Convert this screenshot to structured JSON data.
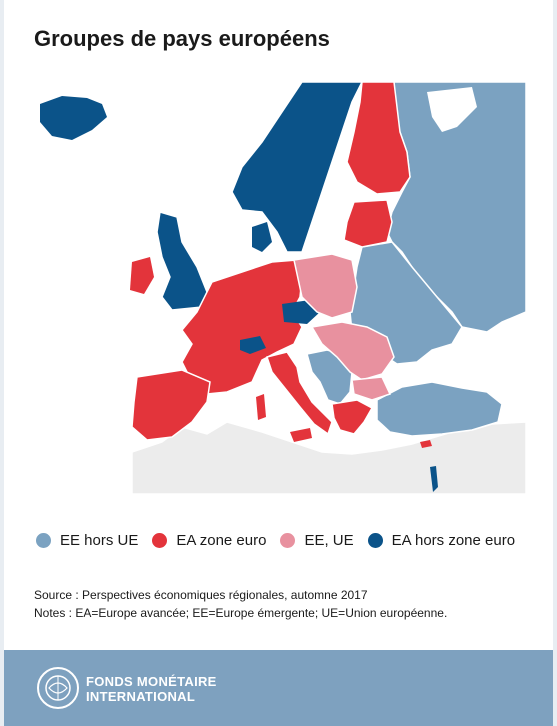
{
  "title": "Groupes de pays européens",
  "colors": {
    "ee_hors_ue": "#7ba2c1",
    "ea_zone_euro": "#e3343b",
    "ee_ue": "#e8919f",
    "ea_hors_zone_euro": "#0b5389",
    "non_classified": "#ececec",
    "sea": "#ffffff",
    "footer": "#7ea1bf"
  },
  "legend": [
    {
      "label": "EE hors UE",
      "color": "#7ba2c1"
    },
    {
      "label": "EA zone euro",
      "color": "#e3343b"
    },
    {
      "label": "EE, UE",
      "color": "#e8919f"
    },
    {
      "label": "EA hors zone euro",
      "color": "#0b5389"
    }
  ],
  "source": "Source : Perspectives économiques régionales, automne 2017",
  "notes": "Notes : EA=Europe avancée; EE=Europe émergente; UE=Union européenne.",
  "footer": {
    "logo_line1": "FONDS MONÉTAIRE",
    "logo_line2": "INTERNATIONAL",
    "logo_icon": "imf-seal-icon"
  }
}
